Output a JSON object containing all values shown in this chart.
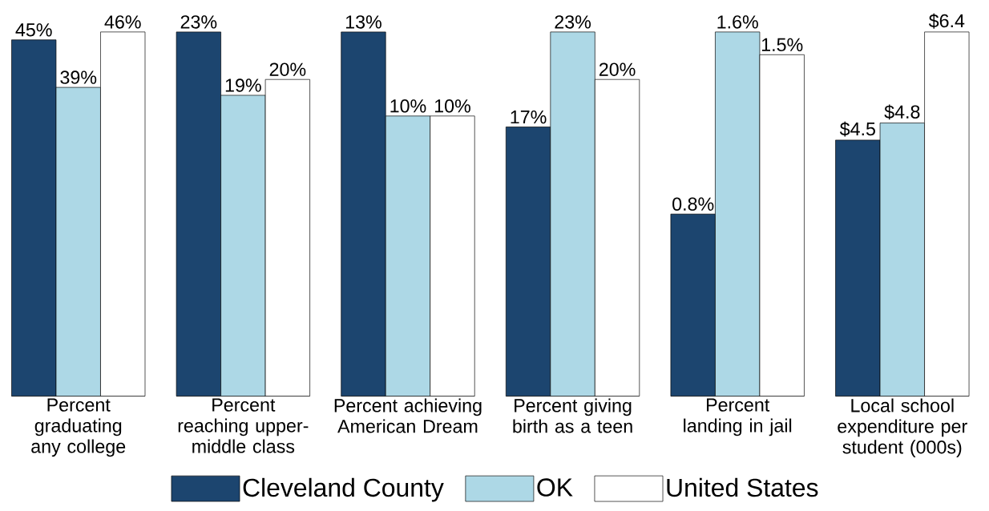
{
  "chart_data": [
    {
      "type": "bar",
      "legend": "bottom",
      "categories": [
        "Percent graduating any college"
      ],
      "series": [
        {
          "name": "Cleveland County",
          "color": "#1c456f",
          "values": [
            45
          ],
          "value_labels": [
            "45%"
          ]
        },
        {
          "name": "OK",
          "color": "#add8e6",
          "values": [
            39
          ],
          "value_labels": [
            "39%"
          ]
        },
        {
          "name": "United States",
          "color": "#ffffff",
          "values": [
            46
          ],
          "value_labels": [
            "46%"
          ]
        }
      ]
    },
    {
      "type": "bar",
      "categories": [
        "Percent reaching upper-middle class"
      ],
      "series": [
        {
          "color": "#1c456f",
          "values": [
            23
          ],
          "value_labels": [
            "23%"
          ]
        },
        {
          "color": "#add8e6",
          "values": [
            19
          ],
          "value_labels": [
            "19%"
          ]
        },
        {
          "color": "#ffffff",
          "values": [
            20
          ],
          "value_labels": [
            "20%"
          ]
        }
      ]
    },
    {
      "type": "bar",
      "categories": [
        "Percent achieving American Dream"
      ],
      "series": [
        {
          "color": "#1c456f",
          "values": [
            13
          ],
          "value_labels": [
            "13%"
          ]
        },
        {
          "color": "#add8e6",
          "values": [
            10
          ],
          "value_labels": [
            "10%"
          ]
        },
        {
          "color": "#ffffff",
          "values": [
            10
          ],
          "value_labels": [
            "10%"
          ]
        }
      ]
    },
    {
      "type": "bar",
      "categories": [
        "Percent giving birth as a teen"
      ],
      "series": [
        {
          "color": "#1c456f",
          "values": [
            17
          ],
          "value_labels": [
            "17%"
          ]
        },
        {
          "color": "#add8e6",
          "values": [
            23
          ],
          "value_labels": [
            "23%"
          ]
        },
        {
          "color": "#ffffff",
          "values": [
            20
          ],
          "value_labels": [
            "20%"
          ]
        }
      ]
    },
    {
      "type": "bar",
      "categories": [
        "Percent landing in jail"
      ],
      "series": [
        {
          "color": "#1c456f",
          "values": [
            0.8
          ],
          "value_labels": [
            "0.8%"
          ]
        },
        {
          "color": "#add8e6",
          "values": [
            1.6
          ],
          "value_labels": [
            "1.6%"
          ]
        },
        {
          "color": "#ffffff",
          "values": [
            1.5
          ],
          "value_labels": [
            "1.5%"
          ]
        }
      ]
    },
    {
      "type": "bar",
      "categories": [
        "Local school expenditure per student (000s)"
      ],
      "series": [
        {
          "color": "#1c456f",
          "values": [
            4.5
          ],
          "value_labels": [
            "$4.5"
          ]
        },
        {
          "color": "#add8e6",
          "values": [
            4.8
          ],
          "value_labels": [
            "$4.8"
          ]
        },
        {
          "color": "#ffffff",
          "values": [
            6.4
          ],
          "value_labels": [
            "$6.4"
          ]
        }
      ]
    }
  ]
}
